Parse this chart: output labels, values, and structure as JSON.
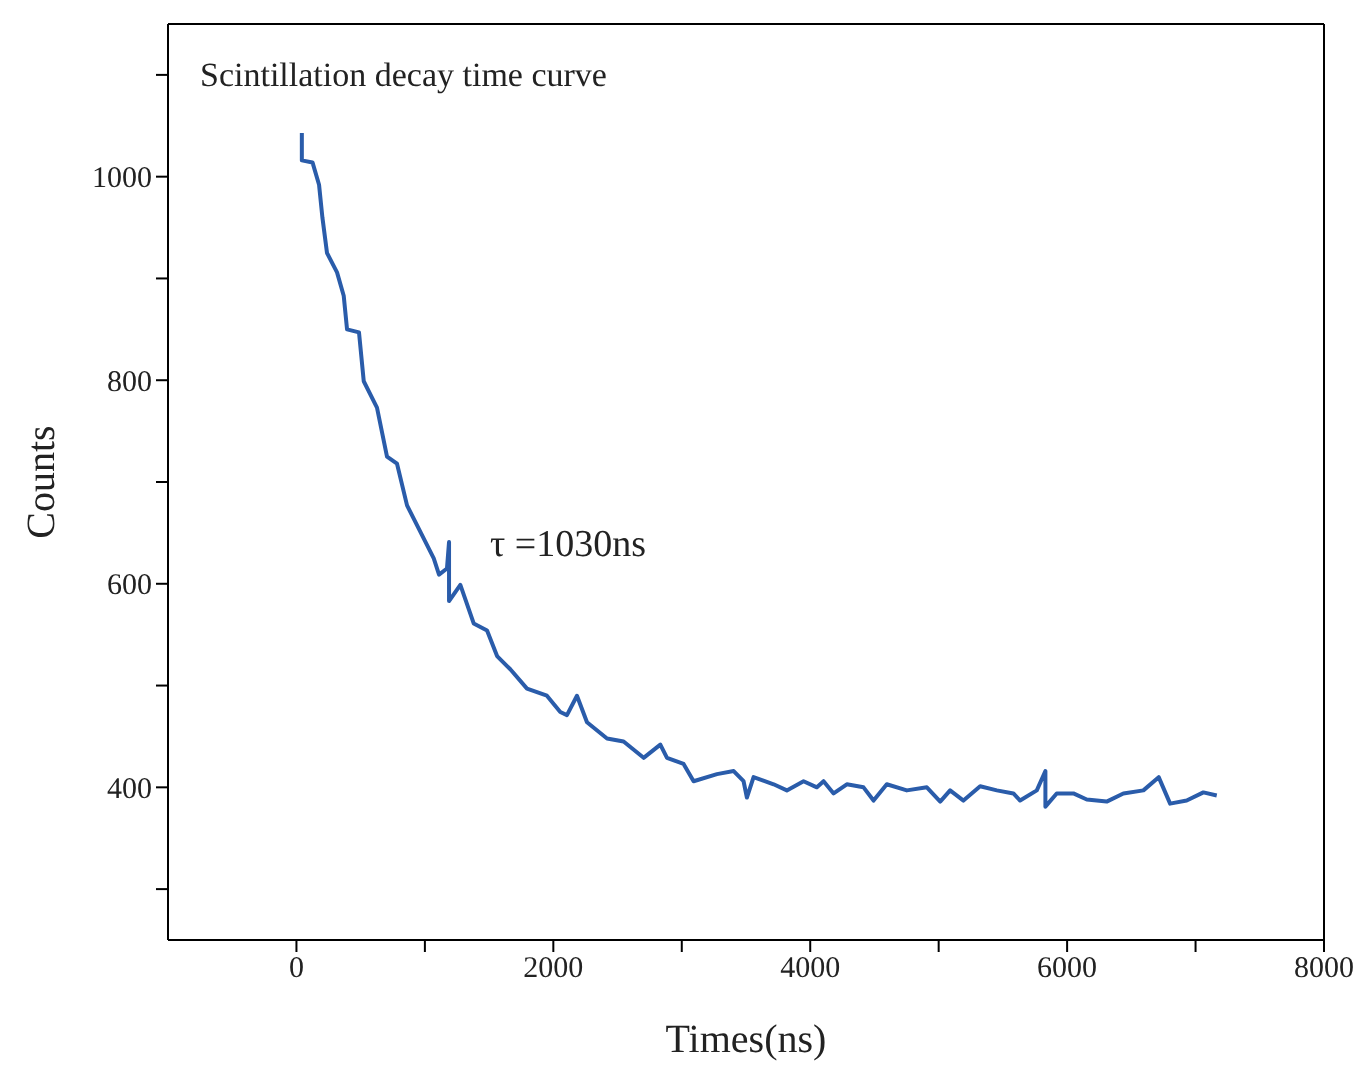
{
  "chart_data": {
    "type": "line",
    "title": "Scintillation decay time curve",
    "xlabel": "Times(ns)",
    "ylabel": "Counts",
    "annotations": [
      "τ =1030ns"
    ],
    "xlim": [
      -1000,
      8000
    ],
    "xticks": [
      0,
      {
        "value": 1000,
        "label": null
      },
      2000,
      {
        "value": 3000,
        "label": null
      },
      4000,
      {
        "value": 5000,
        "label": null
      },
      6000,
      {
        "value": 7000,
        "label": null
      },
      8000
    ],
    "ylim": [
      250,
      1150
    ],
    "yticks": [
      {
        "value": 300,
        "label": null
      },
      400,
      {
        "value": 500,
        "label": null
      },
      600,
      {
        "value": 700,
        "label": null
      },
      800,
      {
        "value": 900,
        "label": null
      },
      1000,
      {
        "value": 1100,
        "label": null
      }
    ],
    "marker": "none",
    "line_style": "solid",
    "series": [
      {
        "color": "#2a5caa",
        "x": [
          42,
          42,
          125,
          176,
          202,
          238,
          316,
          368,
          394,
          487,
          524,
          627,
          705,
          783,
          861,
          965,
          1069,
          1110,
          1172,
          1188,
          1188,
          1276,
          1380,
          1484,
          1562,
          1665,
          1795,
          1950,
          2054,
          2106,
          2184,
          2262,
          2418,
          2547,
          2703,
          2833,
          2885,
          3014,
          3092,
          3274,
          3404,
          3481,
          3507,
          3559,
          3715,
          3818,
          3948,
          4052,
          4104,
          4182,
          4285,
          4415,
          4493,
          4596,
          4752,
          4908,
          5012,
          5089,
          5193,
          5323,
          5453,
          5582,
          5634,
          5764,
          5831,
          5831,
          5919,
          6049,
          6153,
          6308,
          6438,
          6594,
          6713,
          6802,
          6931,
          7061,
          7165
        ],
        "values": [
          1043,
          1016,
          1014,
          992,
          960,
          925,
          906,
          883,
          850,
          847,
          799,
          773,
          725,
          718,
          677,
          651,
          625,
          609,
          615,
          641,
          583,
          599,
          561,
          554,
          529,
          516,
          497,
          490,
          474,
          471,
          490,
          464,
          448,
          445,
          429,
          442,
          429,
          423,
          406,
          413,
          416,
          406,
          390,
          410,
          403,
          397,
          406,
          400,
          406,
          394,
          403,
          400,
          387,
          403,
          397,
          400,
          386,
          397,
          387,
          401,
          397,
          394,
          387,
          397,
          416,
          381,
          394,
          394,
          388,
          386,
          394,
          397,
          410,
          384,
          387,
          395,
          392
        ]
      }
    ]
  }
}
